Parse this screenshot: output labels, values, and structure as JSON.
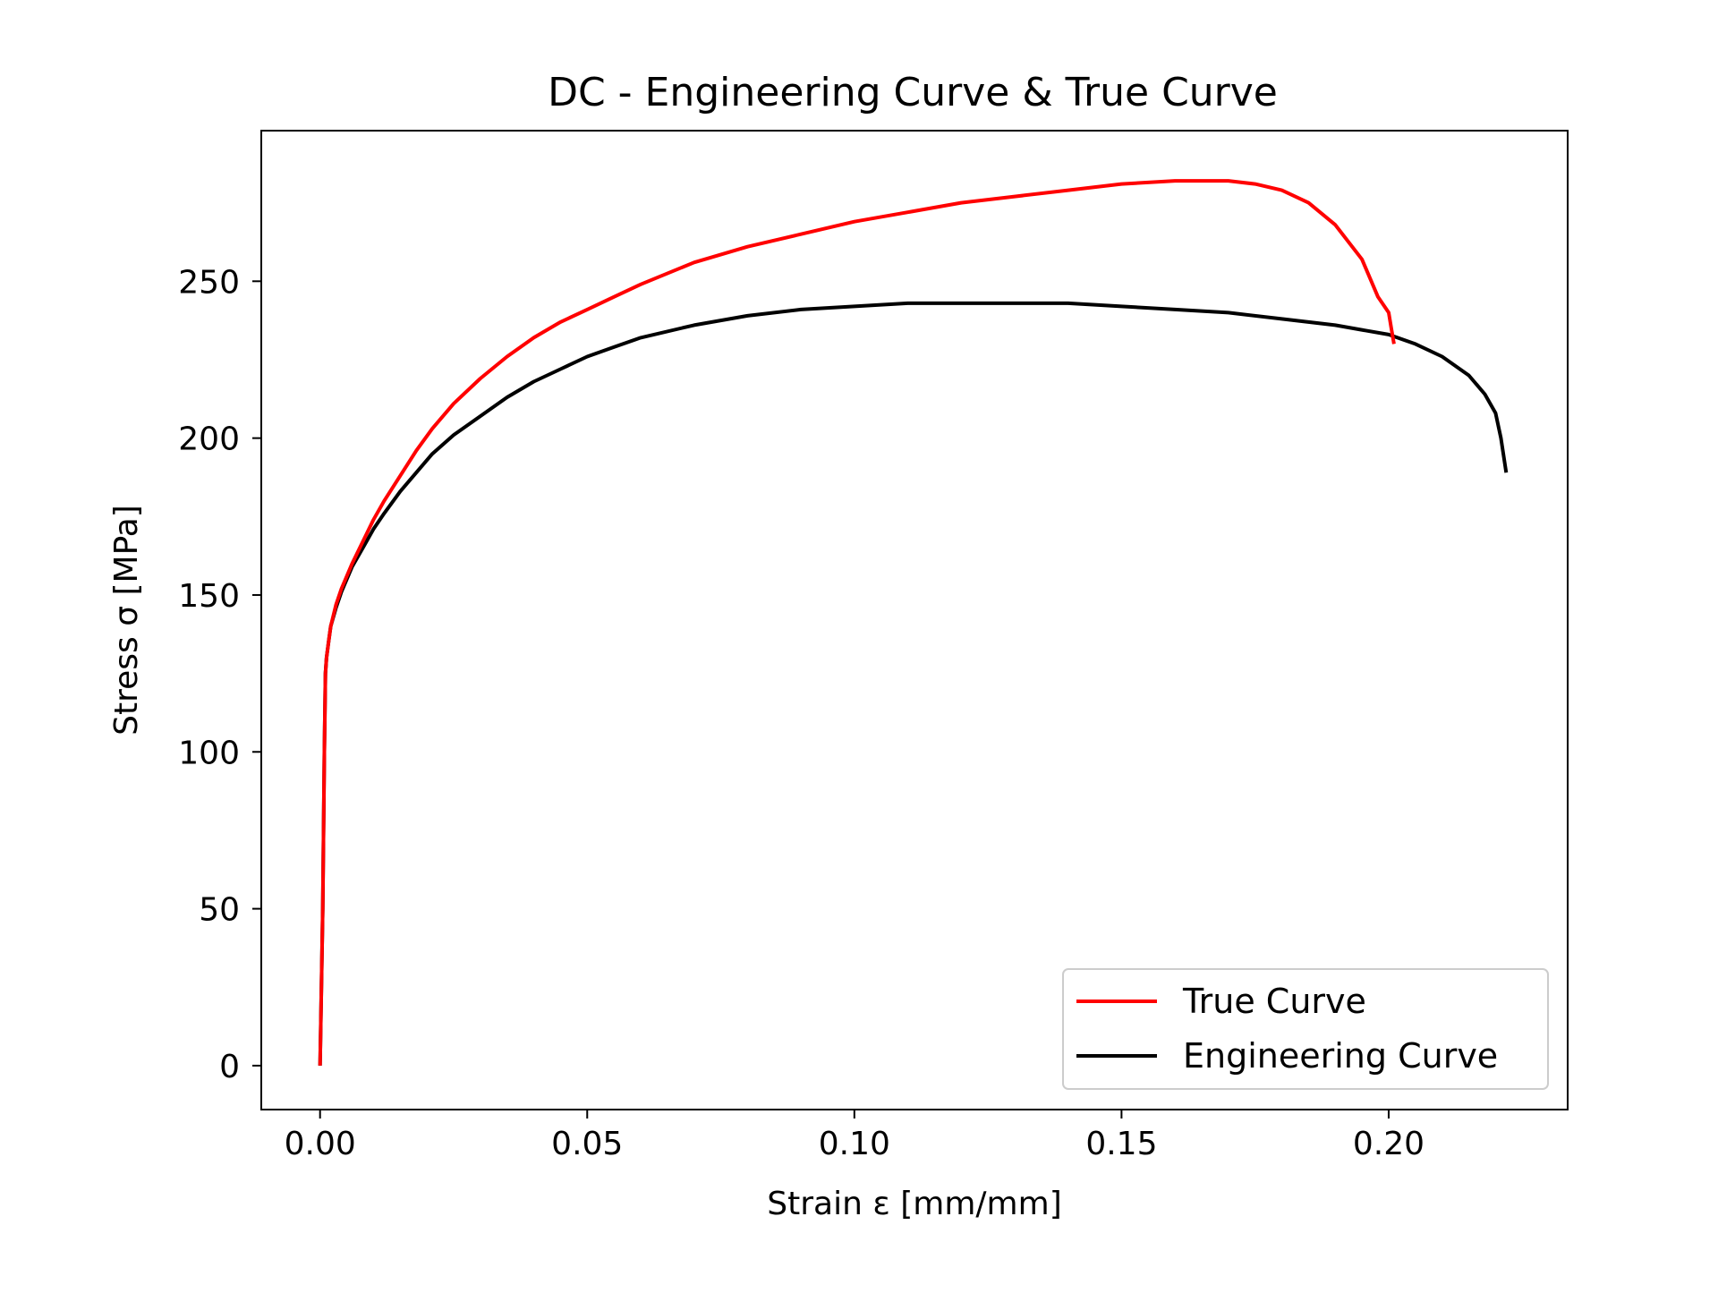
{
  "chart_data": {
    "type": "line",
    "title": "DC - Engineering Curve & True Curve",
    "xlabel": "Strain ε [mm/mm]",
    "ylabel": "Stress σ [MPa]",
    "xlim": [
      -0.011,
      0.2335
    ],
    "ylim": [
      -14,
      298
    ],
    "xticks": [
      0.0,
      0.05,
      0.1,
      0.15,
      0.2
    ],
    "xtick_labels": [
      "0.00",
      "0.05",
      "0.10",
      "0.15",
      "0.20"
    ],
    "yticks": [
      0,
      50,
      100,
      150,
      200,
      250
    ],
    "ytick_labels": [
      "0",
      "50",
      "100",
      "150",
      "200",
      "250"
    ],
    "grid": false,
    "legend_position": "lower-right",
    "series": [
      {
        "name": "True Curve",
        "color": "#ff0000",
        "x": [
          0.0,
          0.0005,
          0.0008,
          0.001,
          0.0012,
          0.0016,
          0.002,
          0.003,
          0.004,
          0.006,
          0.008,
          0.01,
          0.012,
          0.015,
          0.018,
          0.021,
          0.025,
          0.03,
          0.035,
          0.04,
          0.045,
          0.05,
          0.055,
          0.06,
          0.07,
          0.08,
          0.09,
          0.1,
          0.11,
          0.12,
          0.13,
          0.14,
          0.15,
          0.16,
          0.165,
          0.17,
          0.175,
          0.18,
          0.185,
          0.19,
          0.195,
          0.198,
          0.2,
          0.2005,
          0.201
        ],
        "y": [
          0,
          50,
          100,
          125,
          130,
          135,
          140,
          147,
          152,
          160,
          167,
          174,
          180,
          188,
          196,
          203,
          211,
          219,
          226,
          232,
          237,
          241,
          245,
          249,
          256,
          261,
          265,
          269,
          272,
          275,
          277,
          279,
          281,
          282,
          282,
          282,
          281,
          279,
          275,
          268,
          257,
          245,
          240,
          235,
          230
        ]
      },
      {
        "name": "Engineering Curve",
        "color": "#000000",
        "x": [
          0.0,
          0.0005,
          0.0008,
          0.001,
          0.0012,
          0.0016,
          0.002,
          0.003,
          0.004,
          0.006,
          0.008,
          0.01,
          0.012,
          0.015,
          0.018,
          0.021,
          0.025,
          0.03,
          0.035,
          0.04,
          0.045,
          0.05,
          0.055,
          0.06,
          0.07,
          0.08,
          0.09,
          0.1,
          0.11,
          0.12,
          0.13,
          0.14,
          0.15,
          0.16,
          0.17,
          0.18,
          0.19,
          0.2,
          0.205,
          0.21,
          0.215,
          0.218,
          0.22,
          0.221,
          0.222
        ],
        "y": [
          0,
          50,
          100,
          125,
          130,
          135,
          140,
          146,
          151,
          159,
          165,
          171,
          176,
          183,
          189,
          195,
          201,
          207,
          213,
          218,
          222,
          226,
          229,
          232,
          236,
          239,
          241,
          242,
          243,
          243,
          243,
          243,
          242,
          241,
          240,
          238,
          236,
          233,
          230,
          226,
          220,
          214,
          208,
          200,
          189
        ]
      }
    ]
  }
}
